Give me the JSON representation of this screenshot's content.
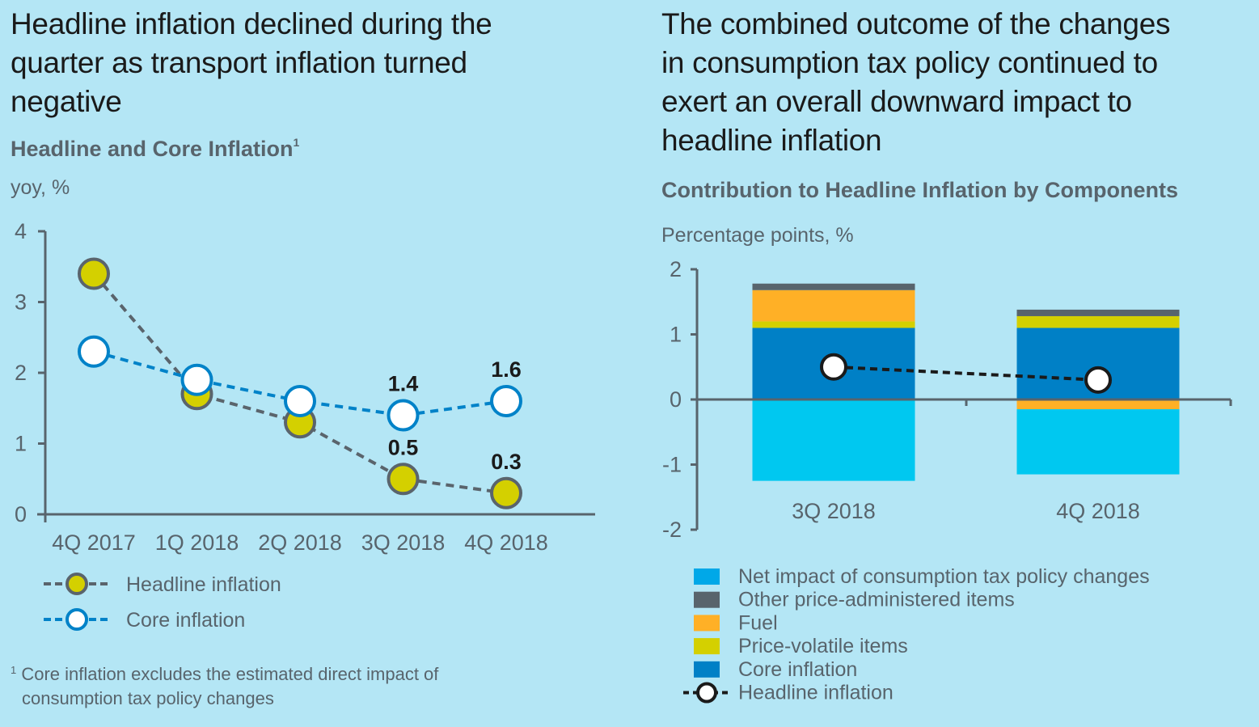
{
  "left": {
    "headline": [
      "Headline inflation declined during the",
      "quarter as transport inflation turned",
      "negative"
    ],
    "subtitle": "Headline and Core Inflation",
    "subtitle_footnote_mark": "1",
    "unit": "yoy, %",
    "footnote_mark": "1",
    "footnote": [
      "Core inflation excludes the estimated direct impact of",
      "consumption tax policy changes"
    ]
  },
  "right": {
    "headline": [
      "The combined outcome of the changes",
      "in consumption tax policy continued to",
      "exert an overall downward impact to",
      "headline inflation"
    ],
    "subtitle": "Contribution to Headline Inflation by Components",
    "unit": "Percentage points, %"
  },
  "colors": {
    "background": "#b4e6f5",
    "headline_fill": "#d4d000",
    "headline_stroke": "#5a646c",
    "core_stroke": "#0082c8",
    "tax_policy": "#00c8f0",
    "other_admin": "#58646c",
    "fuel": "#ffb026",
    "price_volatile": "#d4d000",
    "core_bar": "#0080c6",
    "axis": "#58646c"
  },
  "chart_data": [
    {
      "type": "line",
      "title": "Headline and Core Inflation",
      "xlabel": "",
      "ylabel": "yoy, %",
      "categories": [
        "4Q 2017",
        "1Q 2018",
        "2Q 2018",
        "3Q 2018",
        "4Q 2018"
      ],
      "ylim": [
        0,
        4
      ],
      "yticks": [
        0,
        1,
        2,
        3,
        4
      ],
      "grid": false,
      "legend_position": "bottom-left",
      "series": [
        {
          "name": "Headline inflation",
          "values": [
            3.4,
            1.7,
            1.3,
            0.5,
            0.3
          ],
          "labels": [
            null,
            null,
            null,
            "0.5",
            "0.3"
          ]
        },
        {
          "name": "Core inflation",
          "values": [
            2.3,
            1.9,
            1.6,
            1.4,
            1.6
          ],
          "labels": [
            null,
            null,
            null,
            "1.4",
            "1.6"
          ]
        }
      ]
    },
    {
      "type": "bar",
      "stacked": true,
      "title": "Contribution to Headline Inflation by Components",
      "xlabel": "",
      "ylabel": "Percentage points, %",
      "categories": [
        "3Q 2018",
        "4Q 2018"
      ],
      "ylim": [
        -2,
        2
      ],
      "yticks": [
        2,
        1,
        0,
        -1,
        -2
      ],
      "grid": false,
      "legend_position": "bottom",
      "series": [
        {
          "name": "Net impact of consumption tax policy changes",
          "color_key": "tax_policy",
          "values": [
            -1.25,
            -1.0
          ]
        },
        {
          "name": "Other price-administered items",
          "color_key": "other_admin",
          "values": [
            0.1,
            0.1
          ]
        },
        {
          "name": "Fuel",
          "color_key": "fuel",
          "values": [
            0.48,
            -0.15
          ]
        },
        {
          "name": "Price-volatile items",
          "color_key": "price_volatile",
          "values": [
            0.1,
            0.18
          ]
        },
        {
          "name": "Core inflation",
          "color_key": "core_bar",
          "values": [
            1.1,
            1.1
          ]
        }
      ],
      "line": {
        "name": "Headline inflation",
        "values": [
          0.5,
          0.3
        ]
      }
    }
  ]
}
